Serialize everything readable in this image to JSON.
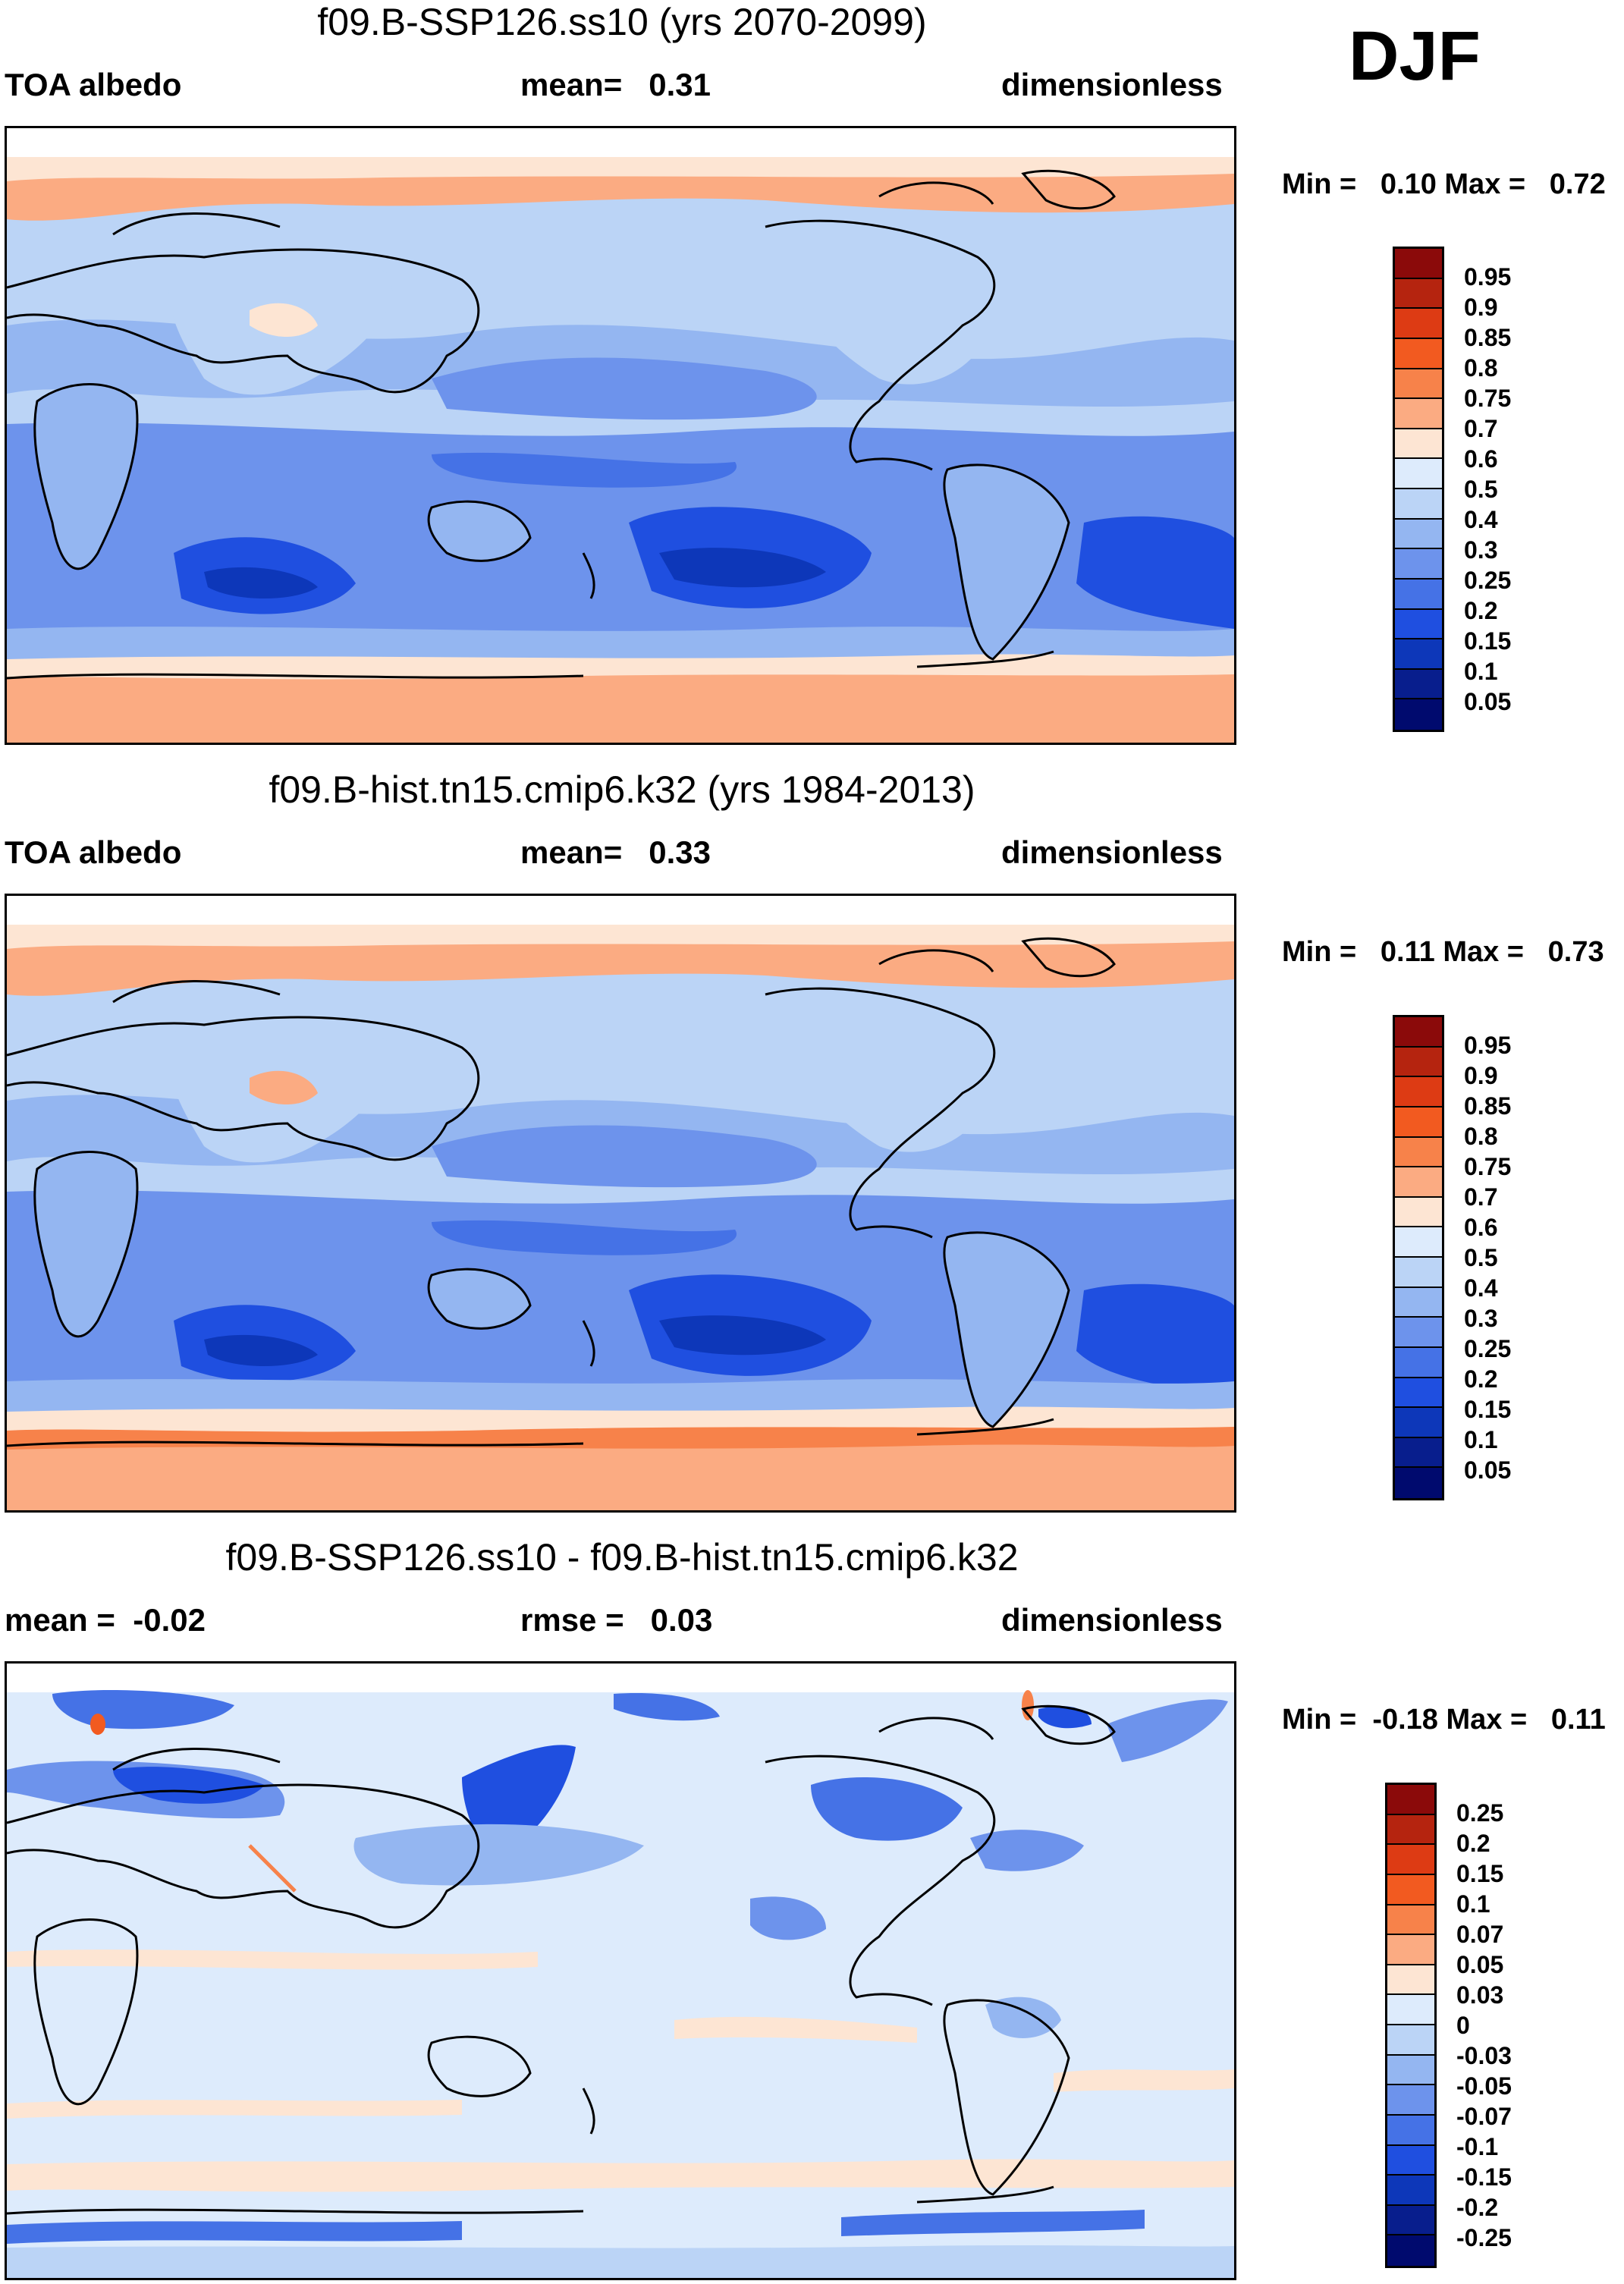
{
  "season": "DJF",
  "panels": [
    {
      "title": "f09.B-SSP126.ss10 (yrs 2070-2099)",
      "left_label": "TOA albedo",
      "center_label": "mean=",
      "center_value": "0.31",
      "right_label": "dimensionless",
      "min_label": "Min =",
      "min_value": "0.10",
      "max_label": "Max =",
      "max_value": "0.72",
      "colorbar_labels": [
        "0.95",
        "0.9",
        "0.85",
        "0.8",
        "0.75",
        "0.7",
        "0.6",
        "0.5",
        "0.4",
        "0.3",
        "0.25",
        "0.2",
        "0.15",
        "0.1",
        "0.05"
      ],
      "colorbar_colors": [
        "#8b0a0a",
        "#b5240f",
        "#dd3b14",
        "#f25a20",
        "#f7824a",
        "#fbab82",
        "#fde5d3",
        "#ddebfc",
        "#bbd4f6",
        "#94b6f1",
        "#6d93ec",
        "#4572e6",
        "#1f4fe0",
        "#0d37b9",
        "#081e8d",
        "#000a6e"
      ],
      "map_fields": {
        "tropics_min": 0.15,
        "midlat_oceans": 0.25,
        "polar_land": 0.6
      }
    },
    {
      "title": "f09.B-hist.tn15.cmip6.k32 (yrs 1984-2013)",
      "left_label": "TOA albedo",
      "center_label": "mean=",
      "center_value": "0.33",
      "right_label": "dimensionless",
      "min_label": "Min =",
      "min_value": "0.11",
      "max_label": "Max =",
      "max_value": "0.73",
      "colorbar_labels": [
        "0.95",
        "0.9",
        "0.85",
        "0.8",
        "0.75",
        "0.7",
        "0.6",
        "0.5",
        "0.4",
        "0.3",
        "0.25",
        "0.2",
        "0.15",
        "0.1",
        "0.05"
      ],
      "colorbar_colors": [
        "#8b0a0a",
        "#b5240f",
        "#dd3b14",
        "#f25a20",
        "#f7824a",
        "#fbab82",
        "#fde5d3",
        "#ddebfc",
        "#bbd4f6",
        "#94b6f1",
        "#6d93ec",
        "#4572e6",
        "#1f4fe0",
        "#0d37b9",
        "#081e8d",
        "#000a6e"
      ],
      "map_fields": {
        "tropics_min": 0.15,
        "midlat_oceans": 0.3,
        "polar_land": 0.7
      }
    },
    {
      "title": "f09.B-SSP126.ss10 - f09.B-hist.tn15.cmip6.k32",
      "left_label": "mean =",
      "left_value": "-0.02",
      "center_label": "rmse =",
      "center_value": "0.03",
      "right_label": "dimensionless",
      "min_label": "Min =",
      "min_value": "-0.18",
      "max_label": "Max =",
      "max_value": "0.11",
      "colorbar_labels": [
        "0.25",
        "0.2",
        "0.15",
        "0.1",
        "0.07",
        "0.05",
        "0.03",
        "0",
        "-0.03",
        "-0.05",
        "-0.07",
        "-0.1",
        "-0.15",
        "-0.2",
        "-0.25"
      ],
      "colorbar_colors": [
        "#8b0a0a",
        "#b5240f",
        "#dd3b14",
        "#f25a20",
        "#f7824a",
        "#fbab82",
        "#fde5d3",
        "#ddebfc",
        "#bbd4f6",
        "#94b6f1",
        "#6d93ec",
        "#4572e6",
        "#1f4fe0",
        "#0d37b9",
        "#081e8d",
        "#000a6e"
      ],
      "map_fields": {
        "background": 0.0,
        "arctic_land": -0.07,
        "south_ocean_band": -0.1
      }
    }
  ]
}
